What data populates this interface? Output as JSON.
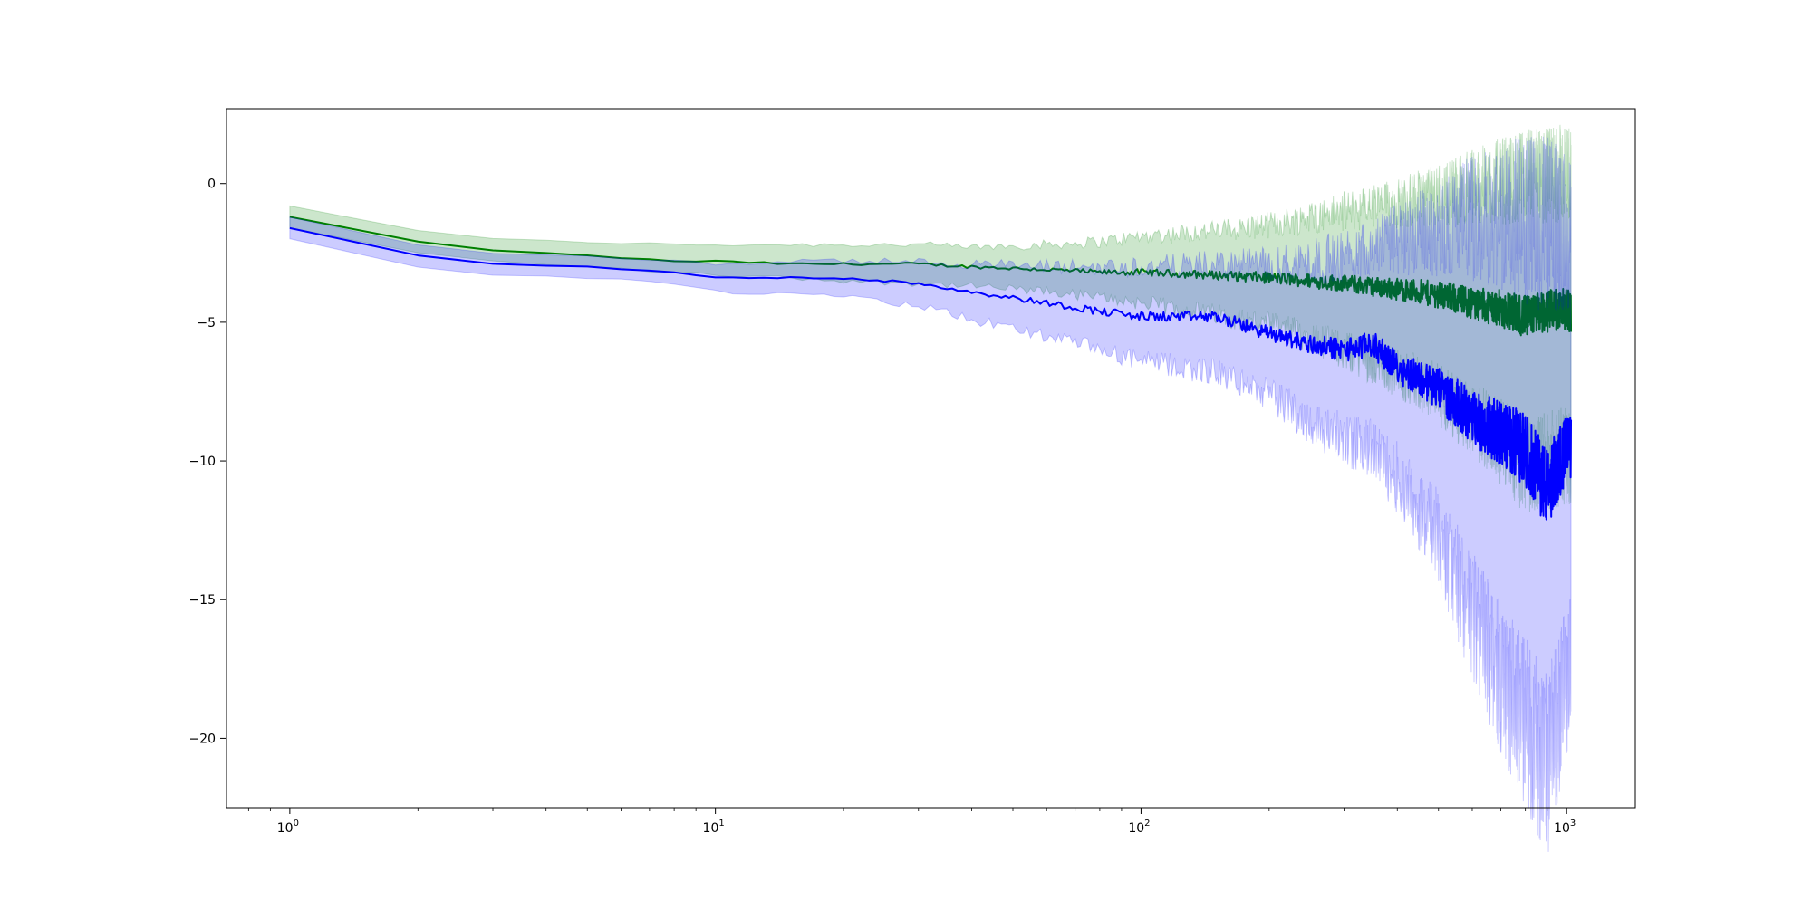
{
  "chart_data": {
    "type": "line",
    "title": "",
    "xlabel": "",
    "ylabel": "",
    "xscale": "log",
    "xlim": [
      0.71,
      1450
    ],
    "ylim": [
      -22.5,
      2.7
    ],
    "grid": false,
    "legend": "none",
    "x_ticks": [
      {
        "value": 1,
        "base": "10",
        "exp": "0"
      },
      {
        "value": 10,
        "base": "10",
        "exp": "1"
      },
      {
        "value": 100,
        "base": "10",
        "exp": "2"
      },
      {
        "value": 1000,
        "base": "10",
        "exp": "3"
      }
    ],
    "y_ticks": [
      {
        "value": 0,
        "label": "0"
      },
      {
        "value": -5,
        "label": "−5"
      },
      {
        "value": -10,
        "label": "−10"
      },
      {
        "value": -15,
        "label": "−15"
      },
      {
        "value": -20,
        "label": "−20"
      }
    ],
    "series": [
      {
        "color": "#008000",
        "band_color": "#008000",
        "band_opacity": 0.2,
        "x": [
          1,
          2,
          3,
          5,
          8,
          10,
          15,
          20,
          30,
          40,
          60,
          80,
          100,
          150,
          200,
          250,
          300,
          400,
          500,
          600,
          700,
          800,
          900,
          1000,
          1024
        ],
        "mean": [
          -1.2,
          -2.1,
          -2.4,
          -2.6,
          -2.8,
          -2.8,
          -2.9,
          -2.9,
          -2.9,
          -3.0,
          -3.1,
          -3.2,
          -3.2,
          -3.3,
          -3.4,
          -3.5,
          -3.6,
          -3.8,
          -4.0,
          -4.3,
          -4.5,
          -4.8,
          -4.6,
          -4.5,
          -4.6
        ],
        "upper": [
          -0.8,
          -1.7,
          -2.0,
          -2.1,
          -2.2,
          -2.2,
          -2.2,
          -2.2,
          -2.2,
          -2.3,
          -2.2,
          -2.1,
          -1.9,
          -1.7,
          -1.5,
          -1.2,
          -1.0,
          -0.7,
          -0.4,
          -0.1,
          0.1,
          0.2,
          0.3,
          0.4,
          0.4
        ],
        "lower": [
          -1.6,
          -2.5,
          -2.8,
          -3.0,
          -3.2,
          -3.3,
          -3.4,
          -3.5,
          -3.6,
          -3.7,
          -3.9,
          -4.1,
          -4.3,
          -4.7,
          -5.1,
          -5.5,
          -6.0,
          -6.8,
          -7.6,
          -8.5,
          -9.3,
          -10.2,
          -10.0,
          -9.8,
          -9.9
        ]
      },
      {
        "color": "#0000ff",
        "band_color": "#0000ff",
        "band_opacity": 0.2,
        "x": [
          1,
          2,
          3,
          5,
          8,
          10,
          15,
          20,
          30,
          40,
          60,
          80,
          100,
          150,
          200,
          250,
          300,
          350,
          400,
          500,
          600,
          700,
          800,
          900,
          1000,
          1024
        ],
        "mean": [
          -1.6,
          -2.6,
          -2.9,
          -3.0,
          -3.2,
          -3.4,
          -3.4,
          -3.4,
          -3.6,
          -3.9,
          -4.3,
          -4.6,
          -4.8,
          -4.8,
          -5.4,
          -5.8,
          -6.0,
          -5.8,
          -6.6,
          -7.4,
          -8.4,
          -9.0,
          -9.6,
          -11.0,
          -9.5,
          -9.6
        ],
        "upper": [
          -1.2,
          -2.2,
          -2.5,
          -2.6,
          -2.8,
          -2.9,
          -2.8,
          -2.8,
          -2.8,
          -2.9,
          -3.0,
          -3.0,
          -3.0,
          -2.9,
          -2.9,
          -2.8,
          -2.6,
          -2.2,
          -2.0,
          -1.6,
          -1.2,
          -1.2,
          -1.3,
          -1.5,
          -1.8,
          -1.8
        ],
        "lower": [
          -2.0,
          -3.0,
          -3.3,
          -3.4,
          -3.6,
          -3.9,
          -4.0,
          -4.1,
          -4.4,
          -4.9,
          -5.5,
          -6.0,
          -6.4,
          -6.8,
          -7.6,
          -8.6,
          -9.2,
          -9.6,
          -10.6,
          -12.8,
          -15.6,
          -17.8,
          -19.4,
          -21.0,
          -17.8,
          -17.2
        ]
      }
    ]
  }
}
